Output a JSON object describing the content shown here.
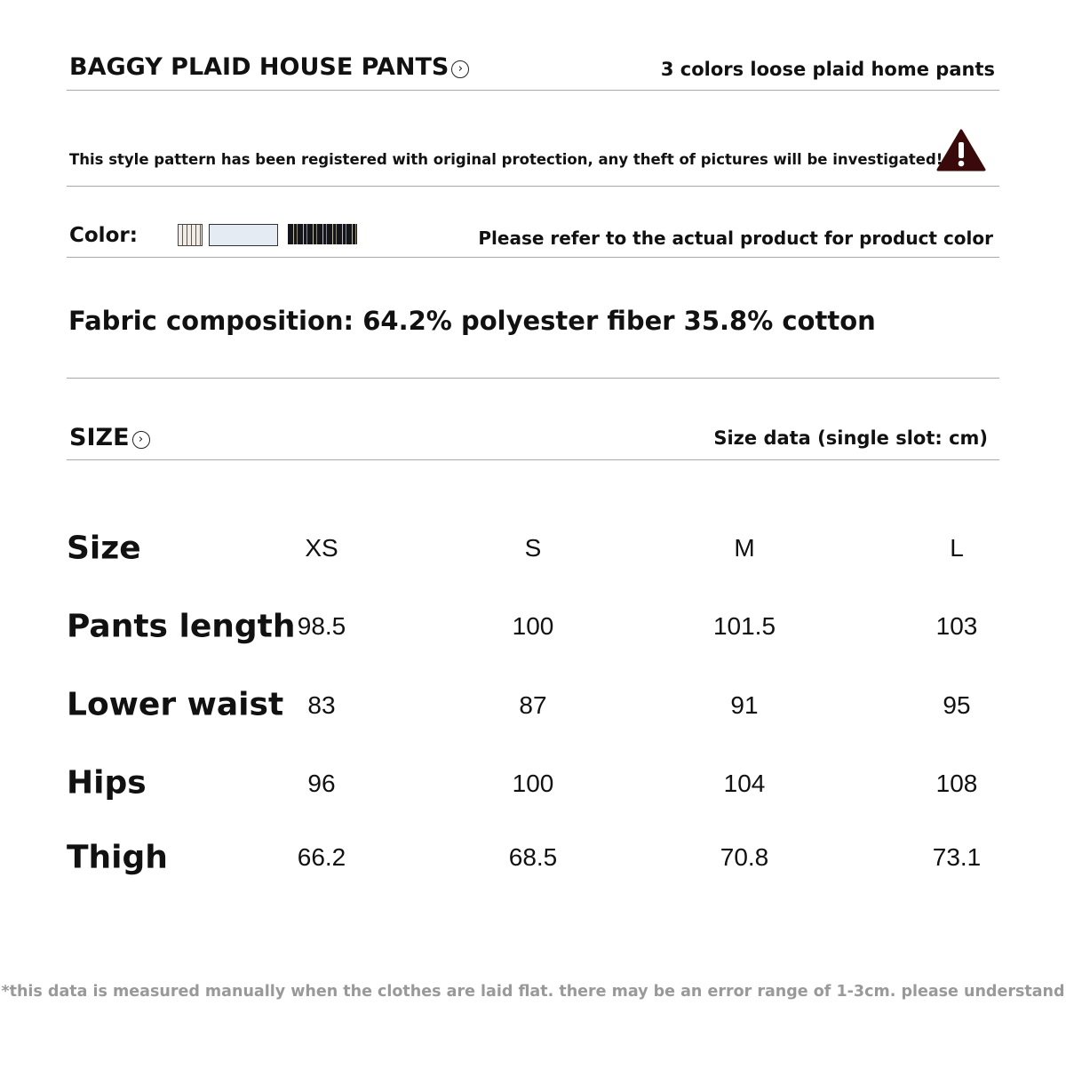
{
  "header": {
    "title": "BAGGY PLAID HOUSE PANTS",
    "subtitle": "3 colors loose plaid home pants"
  },
  "notice": {
    "text": "This style pattern has been registered with original protection, any theft of pictures will be investigated!",
    "icon": "warning-icon",
    "icon_color": "#3a0a0a"
  },
  "color": {
    "label": "Color:",
    "note": "Please refer to the actual product for product color",
    "swatches": [
      {
        "name": "beige plaid",
        "color": "#cfc6b8"
      },
      {
        "name": "light blue",
        "color": "#e4ebf2"
      },
      {
        "name": "black plaid",
        "color": "#15151c"
      }
    ]
  },
  "fabric": "Fabric composition: 64.2% polyester fiber 35.8% cotton",
  "size_section": {
    "title": "SIZE",
    "note": "Size data (single slot: cm)"
  },
  "table": {
    "header_label": "Size",
    "sizes": [
      "XS",
      "S",
      "M",
      "L"
    ],
    "rows": [
      {
        "label": "Pants length",
        "values": [
          "98.5",
          "100",
          "101.5",
          "103"
        ]
      },
      {
        "label": "Lower waist",
        "values": [
          "83",
          "87",
          "91",
          "95"
        ]
      },
      {
        "label": "Hips",
        "values": [
          "96",
          "100",
          "104",
          "108"
        ]
      },
      {
        "label": "Thigh",
        "values": [
          "66.2",
          "68.5",
          "70.8",
          "73.1"
        ]
      }
    ]
  },
  "footnote": "*this data is measured manually when the clothes are laid flat. there may be an error range of 1-3cm. please understand"
}
